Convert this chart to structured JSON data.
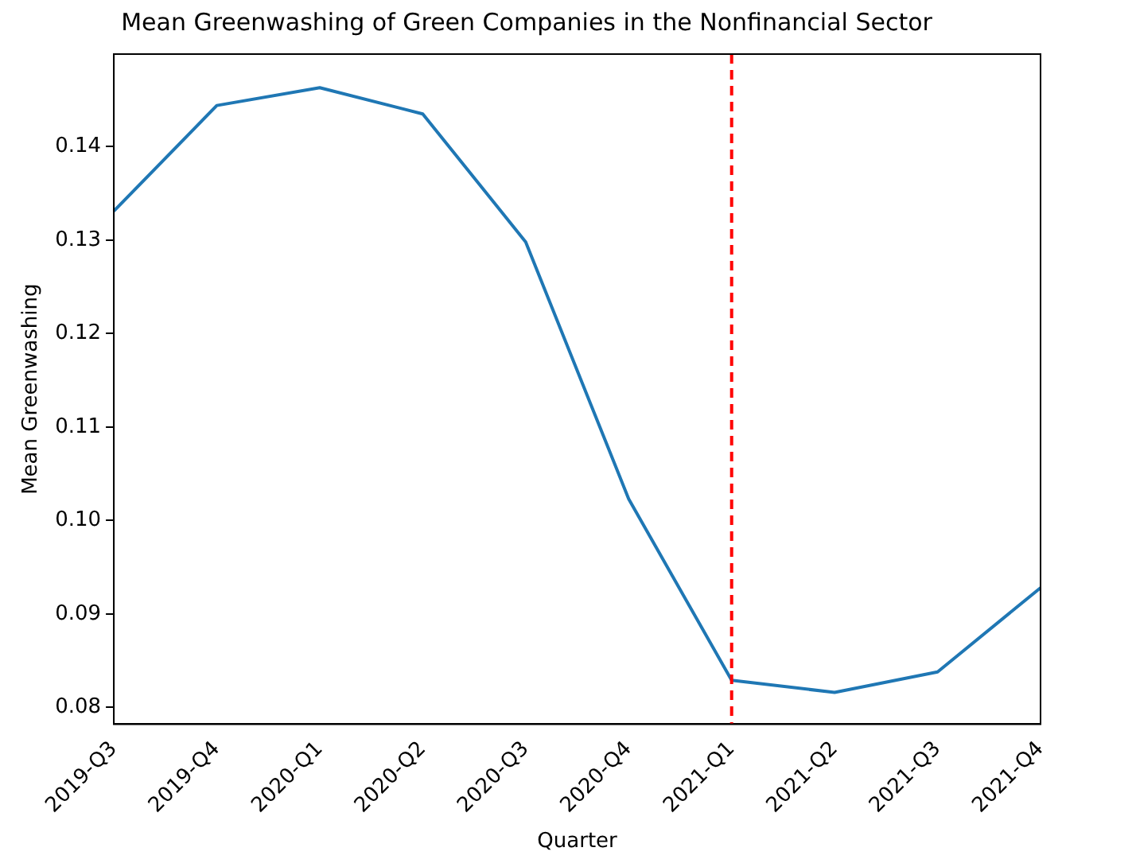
{
  "chart_data": {
    "type": "line",
    "title": "Mean Greenwashing of Green Companies in the Nonfinancial Sector",
    "xlabel": "Quarter",
    "ylabel": "Mean Greenwashing",
    "categories": [
      "2019-Q3",
      "2019-Q4",
      "2020-Q1",
      "2020-Q2",
      "2020-Q3",
      "2020-Q4",
      "2021-Q1",
      "2021-Q2",
      "2021-Q3",
      "2021-Q4"
    ],
    "series": [
      {
        "color": "#1f77b4",
        "values": [
          0.1331,
          0.1444,
          0.1463,
          0.1435,
          0.1298,
          0.1023,
          0.0829,
          0.0816,
          0.0838,
          0.0928
        ]
      }
    ],
    "ylim": [
      0.0782,
      0.1499
    ],
    "yticks": [
      {
        "value": 0.08,
        "label": "0.08"
      },
      {
        "value": 0.09,
        "label": "0.09"
      },
      {
        "value": 0.1,
        "label": "0.10"
      },
      {
        "value": 0.11,
        "label": "0.11"
      },
      {
        "value": 0.12,
        "label": "0.12"
      },
      {
        "value": 0.13,
        "label": "0.13"
      },
      {
        "value": 0.14,
        "label": "0.14"
      }
    ],
    "ref_lines": [
      {
        "axis": "x",
        "value": "2021-Q1",
        "color": "#ff0000",
        "line_style": "dashed"
      }
    ],
    "grid": false,
    "legend": false,
    "marker": "none",
    "line_style": "solid"
  }
}
